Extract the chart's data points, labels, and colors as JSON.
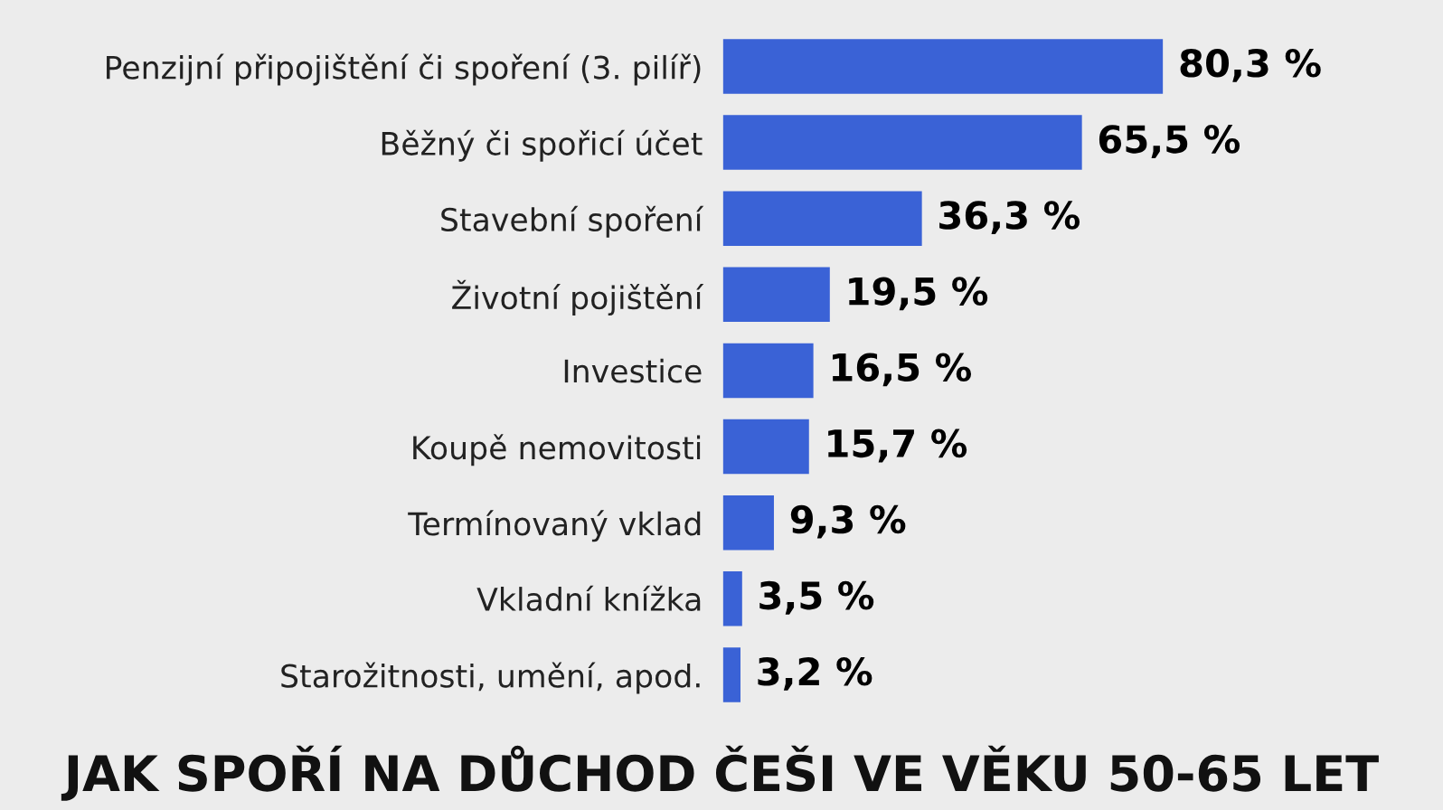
{
  "chart_data": {
    "type": "bar",
    "orientation": "horizontal",
    "title": "JAK SPOŘÍ NA DŮCHOD ČEŠI VE VĚKU 50-65 LET",
    "categories": [
      "Penzijní připojištění či spoření (3. pilíř)",
      "Běžný či spořicí účet",
      "Stavební spoření",
      "Životní pojištění",
      "Investice",
      "Koupě nemovitosti",
      "Termínovaný vklad",
      "Vkladní knížka",
      "Starožitnosti, umění, apod."
    ],
    "values": [
      80.3,
      65.5,
      36.3,
      19.5,
      16.5,
      15.7,
      9.3,
      3.5,
      3.2
    ],
    "value_labels": [
      "80,3 %",
      "65,5 %",
      "36,3 %",
      "19,5 %",
      "16,5 %",
      "15,7 %",
      "9,3 %",
      "3,5 %",
      "3,2 %"
    ],
    "color": "#3a62d6",
    "tick_labels": "y",
    "grid": false,
    "legend": false
  }
}
